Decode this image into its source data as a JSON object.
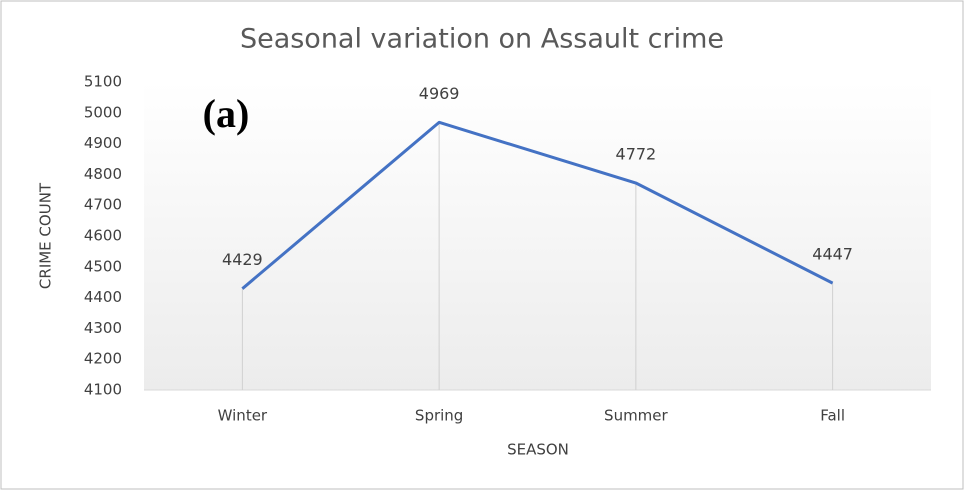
{
  "chart_data": {
    "type": "line",
    "title": "Seasonal variation on Assault crime",
    "annotation": "(a)",
    "x_label": "SEASON",
    "y_label": "CRIME COUNT",
    "categories": [
      "Winter",
      "Spring",
      "Summer",
      "Fall"
    ],
    "series": [
      {
        "name": "Assault",
        "color": "#4472c4",
        "values": [
          4429,
          4969,
          4772,
          4447
        ]
      }
    ],
    "ylim": [
      4100,
      5100
    ],
    "yticks": [
      4100,
      4200,
      4300,
      4400,
      4500,
      4600,
      4700,
      4800,
      4900,
      5000,
      5100
    ],
    "grid": false,
    "drop_lines": true
  }
}
